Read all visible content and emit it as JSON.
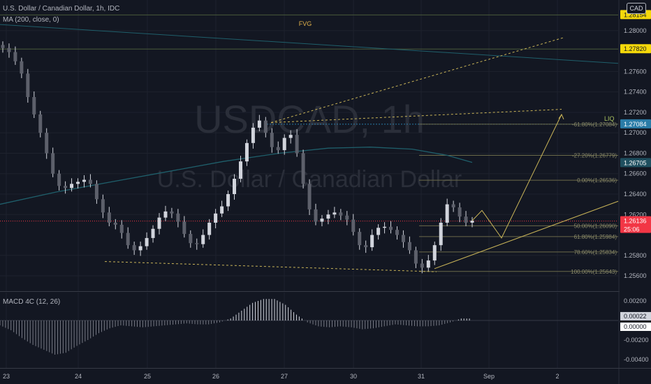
{
  "header": {
    "symbol_line": "U.S. Dollar / Canadian Dollar, 1h, IDC",
    "ma_line": "MA (200, close, 0)",
    "currency": "CAD"
  },
  "watermark": {
    "ticker": "USDCAD, 1h",
    "name": "U.S. Dollar / Canadian Dollar"
  },
  "annotations": {
    "fvg": "FVG",
    "liq": "LIQ"
  },
  "price_axis": {
    "ticks": [
      "1.28000",
      "1.27600",
      "1.27400",
      "1.27200",
      "1.27000",
      "1.26800",
      "1.26600",
      "1.26400",
      "1.26200",
      "1.25800",
      "1.25600"
    ],
    "tags": [
      {
        "label": "1.28154",
        "color": "#f5d90a",
        "text_color": "#131722"
      },
      {
        "label": "1.27820",
        "color": "#f5d90a",
        "text_color": "#131722"
      },
      {
        "label": "1.27084",
        "color": "#2a7ca7",
        "text_color": "#ffffff"
      },
      {
        "label": "1.26705",
        "color": "#1f4f5f",
        "text_color": "#ffffff"
      },
      {
        "label": "1.26136",
        "color": "#f23645",
        "text_color": "#ffffff"
      }
    ],
    "countdown": "25:06"
  },
  "fib_levels": [
    {
      "label": "-61.80%(1.27084)",
      "value": 1.27084
    },
    {
      "label": "-27.20%(1.26779)",
      "value": 1.26779
    },
    {
      "label": "0.00%(1.26536)",
      "value": 1.26536
    },
    {
      "label": "50.00%(1.26090)",
      "value": 1.2609
    },
    {
      "label": "61.80%(1.25984)",
      "value": 1.25984
    },
    {
      "label": "78.60%(1.25834)",
      "value": 1.25834
    },
    {
      "label": "100.00%(1.25643)",
      "value": 1.25643
    }
  ],
  "macd": {
    "title": "MACD 4C (12, 26)",
    "ticks": [
      "0.00200",
      "-0.00200",
      "-0.00400"
    ],
    "tags": [
      {
        "label": "0.00022",
        "color": "#d1d4dc",
        "text_color": "#131722"
      },
      {
        "label": "0.00000",
        "color": "#ffffff",
        "text_color": "#131722"
      }
    ]
  },
  "time_axis": {
    "labels": [
      "23",
      "24",
      "25",
      "26",
      "27",
      "30",
      "31",
      "Sep",
      "2"
    ]
  },
  "colors": {
    "background": "#131722",
    "grid": "#1e222d",
    "candle": "#d1d4dc",
    "ma": "#1f5f6b",
    "fvg_line": "#4a5a3a",
    "dotted_level": "#2a7ca7",
    "projection": "#c9b458",
    "fib": "#6b6a4a",
    "macd_positive": "#d1d4dc",
    "macd_negative": "#787b86"
  },
  "chart_data": {
    "type": "candlestick",
    "symbol": "USDCAD",
    "interval": "1h",
    "x_labels": [
      "23",
      "24",
      "25",
      "26",
      "27",
      "30",
      "31",
      "Sep",
      "2"
    ],
    "ylim": [
      1.2545,
      1.283
    ],
    "close_path": [
      1.2783,
      1.2779,
      1.277,
      1.2758,
      1.2735,
      1.2718,
      1.27,
      1.268,
      1.266,
      1.2648,
      1.2646,
      1.265,
      1.2652,
      1.2654,
      1.265,
      1.2635,
      1.2622,
      1.2612,
      1.261,
      1.2602,
      1.259,
      1.2585,
      1.2589,
      1.2597,
      1.2606,
      1.2617,
      1.2623,
      1.2621,
      1.2613,
      1.2601,
      1.2592,
      1.2591,
      1.26,
      1.2612,
      1.2621,
      1.2628,
      1.264,
      1.2655,
      1.2672,
      1.269,
      1.2705,
      1.2712,
      1.27,
      1.2686,
      1.2683,
      1.2695,
      1.2698,
      1.268,
      1.265,
      1.2625,
      1.2613,
      1.2616,
      1.262,
      1.2622,
      1.2619,
      1.2615,
      1.2603,
      1.259,
      1.2588,
      1.26,
      1.2607,
      1.2608,
      1.2605,
      1.26,
      1.2593,
      1.2585,
      1.2572,
      1.2568,
      1.2575,
      1.259,
      1.2612,
      1.263,
      1.2627,
      1.2618,
      1.2612,
      1.2614
    ],
    "moving_average_200": [
      1.263,
      1.2642,
      1.2652,
      1.2662,
      1.2672,
      1.268,
      1.2685,
      1.2686,
      1.2684,
      1.2678,
      1.2671
    ],
    "macd_histogram": [
      -0.0005,
      -0.001,
      -0.0018,
      -0.0025,
      -0.003,
      -0.0035,
      -0.0033,
      -0.0026,
      -0.002,
      -0.0013,
      -0.0008,
      -0.0005,
      -0.0006,
      -0.0007,
      -0.0006,
      -0.0005,
      -0.0004,
      -0.0003,
      -0.0004,
      -0.0004,
      -0.0002,
      0.0002,
      0.001,
      0.0018,
      0.0022,
      0.0022,
      0.0016,
      0.0006,
      -0.0002,
      -0.0006,
      -0.0007,
      -0.0006,
      -0.0007,
      -0.0009,
      -0.0008,
      -0.0006,
      -0.0004,
      -0.0005,
      -0.0006,
      -0.0006,
      -0.0005,
      -0.0002,
      0.0002,
      0.0002
    ]
  }
}
